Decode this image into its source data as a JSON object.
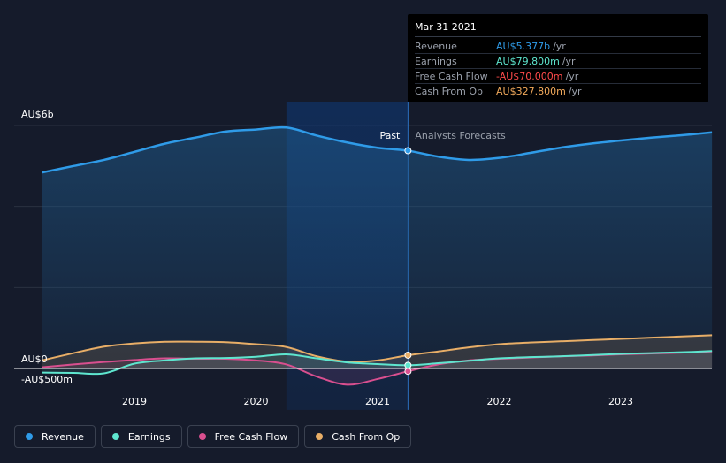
{
  "tooltip": {
    "date": "Mar 31 2021",
    "rows": [
      {
        "name": "Revenue",
        "value": "AU$5.377b",
        "unit": "/yr",
        "color": "#2f9be8"
      },
      {
        "name": "Earnings",
        "value": "AU$79.800m",
        "unit": "/yr",
        "color": "#5ee6cf"
      },
      {
        "name": "Free Cash Flow",
        "value": "-AU$70.000m",
        "unit": "/yr",
        "color": "#ff4b4b"
      },
      {
        "name": "Cash From Op",
        "value": "AU$327.800m",
        "unit": "/yr",
        "color": "#f1a95b"
      }
    ]
  },
  "regions": {
    "past": "Past",
    "forecast": "Analysts Forecasts"
  },
  "legend": [
    {
      "label": "Revenue",
      "color": "#2f9be8"
    },
    {
      "label": "Earnings",
      "color": "#5ee6cf"
    },
    {
      "label": "Free Cash Flow",
      "color": "#d94f8f"
    },
    {
      "label": "Cash From Op",
      "color": "#e8ae67"
    }
  ],
  "chart_data": {
    "type": "line",
    "y_unit": "AU$m",
    "ylim": [
      -500,
      6000
    ],
    "y_tick_labels": [
      {
        "value": 6000,
        "label": "AU$6b"
      },
      {
        "value": 0,
        "label": "AU$0"
      },
      {
        "value": -500,
        "label": "-AU$500m"
      }
    ],
    "x_tick_labels": [
      "2019",
      "2020",
      "2021",
      "2022",
      "2023"
    ],
    "x_range": [
      2018.2,
      2023.75
    ],
    "past_end": 2021.25,
    "highlight_start": 2020.25,
    "series": [
      {
        "name": "Revenue",
        "color": "#2f9be8",
        "x": [
          2018.24,
          2018.5,
          2018.75,
          2019.0,
          2019.25,
          2019.5,
          2019.75,
          2020.0,
          2020.25,
          2020.5,
          2020.75,
          2021.0,
          2021.25,
          2021.5,
          2021.75,
          2022.0,
          2022.25,
          2022.5,
          2022.75,
          2023.0,
          2023.25,
          2023.5,
          2023.75
        ],
        "y": [
          4840,
          5000,
          5150,
          5350,
          5550,
          5700,
          5850,
          5900,
          5950,
          5750,
          5580,
          5450,
          5377,
          5230,
          5150,
          5200,
          5320,
          5450,
          5550,
          5630,
          5700,
          5760,
          5830
        ]
      },
      {
        "name": "Earnings",
        "color": "#5ee6cf",
        "x": [
          2018.24,
          2018.5,
          2018.75,
          2019.0,
          2019.25,
          2019.5,
          2019.75,
          2020.0,
          2020.25,
          2020.5,
          2020.75,
          2021.0,
          2021.25,
          2021.5,
          2021.75,
          2022.0,
          2022.25,
          2022.5,
          2022.75,
          2023.0,
          2023.25,
          2023.5,
          2023.75
        ],
        "y": [
          -100,
          -110,
          -120,
          120,
          200,
          250,
          260,
          290,
          350,
          250,
          150,
          110,
          79.8,
          130,
          190,
          250,
          280,
          300,
          330,
          360,
          380,
          400,
          430
        ]
      },
      {
        "name": "Free Cash Flow",
        "color": "#d94f8f",
        "x": [
          2018.24,
          2018.5,
          2018.75,
          2019.0,
          2019.25,
          2019.5,
          2019.75,
          2020.0,
          2020.25,
          2020.5,
          2020.75,
          2021.0,
          2021.25,
          2021.5,
          2021.75,
          2022.0,
          2022.25,
          2022.5,
          2022.75,
          2023.0,
          2023.25,
          2023.5,
          2023.75
        ],
        "y": [
          30,
          100,
          160,
          210,
          250,
          240,
          240,
          200,
          100,
          -200,
          -400,
          -260,
          -70,
          100,
          200,
          240,
          270,
          300,
          320,
          350,
          370,
          390,
          420
        ]
      },
      {
        "name": "Cash From Op",
        "color": "#e8ae67",
        "x": [
          2018.24,
          2018.5,
          2018.75,
          2019.0,
          2019.25,
          2019.5,
          2019.75,
          2020.0,
          2020.25,
          2020.5,
          2020.75,
          2021.0,
          2021.25,
          2021.5,
          2021.75,
          2022.0,
          2022.25,
          2022.5,
          2022.75,
          2023.0,
          2023.25,
          2023.5,
          2023.75
        ],
        "y": [
          200,
          380,
          540,
          620,
          660,
          660,
          650,
          600,
          530,
          300,
          170,
          200,
          327.8,
          420,
          520,
          600,
          640,
          670,
          700,
          730,
          760,
          790,
          820
        ]
      }
    ],
    "markers": [
      {
        "series": "Revenue",
        "x": 2021.25,
        "y": 5377
      },
      {
        "series": "Earnings",
        "x": 2021.25,
        "y": 79.8
      },
      {
        "series": "Free Cash Flow",
        "x": 2021.25,
        "y": -70
      },
      {
        "series": "Cash From Op",
        "x": 2021.25,
        "y": 327.8
      }
    ]
  }
}
